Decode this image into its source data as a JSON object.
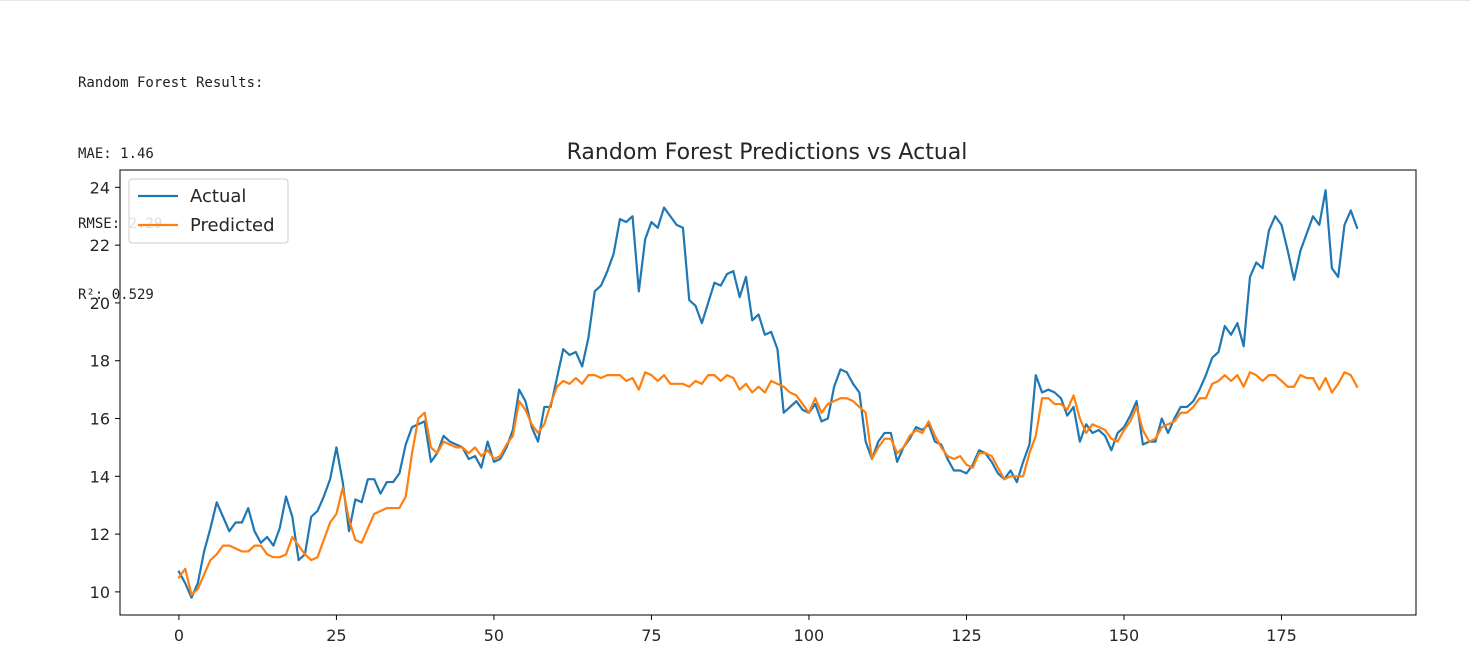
{
  "output": {
    "heading": "Random Forest Results:",
    "lines": [
      "MAE: 1.46",
      "RMSE: 2.29",
      "R²: 0.529"
    ]
  },
  "chart_data": {
    "type": "line",
    "title": "Random Forest Predictions vs Actual",
    "xlabel": "",
    "ylabel": "",
    "xlim": [
      -9.35,
      196.35
    ],
    "ylim": [
      9.2,
      24.6
    ],
    "x_ticks": [
      0,
      25,
      50,
      75,
      100,
      125,
      150,
      175
    ],
    "y_ticks": [
      10,
      12,
      14,
      16,
      18,
      20,
      22,
      24
    ],
    "grid": false,
    "legend_position": "top-left",
    "series": [
      {
        "name": "Actual",
        "color": "#1f77b4",
        "values": [
          10.7,
          10.3,
          9.8,
          10.3,
          11.4,
          12.2,
          13.1,
          12.6,
          12.1,
          12.4,
          12.4,
          12.9,
          12.1,
          11.7,
          11.9,
          11.6,
          12.2,
          13.3,
          12.6,
          11.1,
          11.3,
          12.6,
          12.8,
          13.3,
          13.9,
          15.0,
          13.8,
          12.1,
          13.2,
          13.1,
          13.9,
          13.9,
          13.4,
          13.8,
          13.8,
          14.1,
          15.1,
          15.7,
          15.8,
          15.9,
          14.5,
          14.8,
          15.4,
          15.2,
          15.1,
          15.0,
          14.6,
          14.7,
          14.3,
          15.2,
          14.5,
          14.6,
          15.0,
          15.6,
          17.0,
          16.6,
          15.7,
          15.2,
          16.4,
          16.4,
          17.4,
          18.4,
          18.2,
          18.3,
          17.8,
          18.8,
          20.4,
          20.6,
          21.1,
          21.7,
          22.9,
          22.8,
          23.0,
          20.4,
          22.2,
          22.8,
          22.6,
          23.3,
          23.0,
          22.7,
          22.6,
          20.1,
          19.9,
          19.3,
          20.0,
          20.7,
          20.6,
          21.0,
          21.1,
          20.2,
          20.9,
          19.4,
          19.6,
          18.9,
          19.0,
          18.4,
          16.2,
          16.4,
          16.6,
          16.3,
          16.2,
          16.5,
          15.9,
          16.0,
          17.1,
          17.7,
          17.6,
          17.2,
          16.9,
          15.2,
          14.6,
          15.2,
          15.5,
          15.5,
          14.5,
          15.0,
          15.3,
          15.7,
          15.6,
          15.8,
          15.2,
          15.1,
          14.6,
          14.2,
          14.2,
          14.1,
          14.4,
          14.9,
          14.8,
          14.5,
          14.1,
          13.9,
          14.2,
          13.8,
          14.5,
          15.1,
          17.5,
          16.9,
          17.0,
          16.9,
          16.7,
          16.1,
          16.4,
          15.2,
          15.8,
          15.5,
          15.6,
          15.4,
          14.9,
          15.5,
          15.7,
          16.1,
          16.6,
          15.1,
          15.2,
          15.2,
          16.0,
          15.5,
          16.0,
          16.4,
          16.4,
          16.6,
          17.0,
          17.5,
          18.1,
          18.3,
          19.2,
          18.9,
          19.3,
          18.5,
          20.9,
          21.4,
          21.2,
          22.5,
          23.0,
          22.7,
          21.8,
          20.8,
          21.8,
          22.4,
          23.0,
          22.7,
          23.9,
          21.2,
          20.9,
          22.7,
          23.2,
          22.6
        ]
      },
      {
        "name": "Predicted",
        "color": "#ff7f0e",
        "values": [
          10.5,
          10.8,
          9.9,
          10.1,
          10.6,
          11.1,
          11.3,
          11.6,
          11.6,
          11.5,
          11.4,
          11.4,
          11.6,
          11.6,
          11.3,
          11.2,
          11.2,
          11.3,
          11.9,
          11.6,
          11.3,
          11.1,
          11.2,
          11.8,
          12.4,
          12.7,
          13.6,
          12.5,
          11.8,
          11.7,
          12.2,
          12.7,
          12.8,
          12.9,
          12.9,
          12.9,
          13.3,
          14.8,
          16.0,
          16.2,
          15.0,
          14.8,
          15.2,
          15.1,
          15.0,
          15.0,
          14.8,
          15.0,
          14.7,
          14.9,
          14.6,
          14.7,
          15.1,
          15.4,
          16.6,
          16.3,
          15.8,
          15.5,
          15.8,
          16.5,
          17.1,
          17.3,
          17.2,
          17.4,
          17.2,
          17.5,
          17.5,
          17.4,
          17.5,
          17.5,
          17.5,
          17.3,
          17.4,
          17.0,
          17.6,
          17.5,
          17.3,
          17.5,
          17.2,
          17.2,
          17.2,
          17.1,
          17.3,
          17.2,
          17.5,
          17.5,
          17.3,
          17.5,
          17.4,
          17.0,
          17.2,
          16.9,
          17.1,
          16.9,
          17.3,
          17.2,
          17.1,
          16.9,
          16.8,
          16.5,
          16.2,
          16.7,
          16.2,
          16.5,
          16.6,
          16.7,
          16.7,
          16.6,
          16.4,
          16.2,
          14.6,
          15.0,
          15.3,
          15.3,
          14.8,
          15.0,
          15.4,
          15.6,
          15.5,
          15.9,
          15.4,
          15.0,
          14.7,
          14.6,
          14.7,
          14.4,
          14.3,
          14.8,
          14.8,
          14.7,
          14.3,
          13.9,
          14.0,
          14.0,
          14.0,
          14.8,
          15.4,
          16.7,
          16.7,
          16.5,
          16.5,
          16.3,
          16.8,
          16.0,
          15.5,
          15.8,
          15.7,
          15.6,
          15.3,
          15.2,
          15.6,
          15.9,
          16.4,
          15.6,
          15.2,
          15.3,
          15.7,
          15.8,
          15.9,
          16.2,
          16.2,
          16.4,
          16.7,
          16.7,
          17.2,
          17.3,
          17.5,
          17.3,
          17.5,
          17.1,
          17.6,
          17.5,
          17.3,
          17.5,
          17.5,
          17.3,
          17.1,
          17.1,
          17.5,
          17.4,
          17.4,
          17.0,
          17.4,
          16.9,
          17.2,
          17.6,
          17.5,
          17.1
        ]
      }
    ]
  }
}
